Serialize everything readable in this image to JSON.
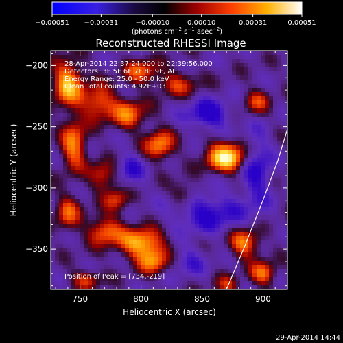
{
  "chart_data": {
    "type": "heatmap",
    "title": "Reconstructed RHESSI Image",
    "xlabel": "Heliocentric X (arcsec)",
    "ylabel": "Heliocentric Y (arcsec)",
    "xlim": [
      726,
      920
    ],
    "ylim": [
      -383,
      -188
    ],
    "x_ticks": [
      750,
      800,
      850,
      900
    ],
    "x_tick_labels": [
      "750",
      "800",
      "850",
      "900"
    ],
    "y_ticks": [
      -200,
      -250,
      -300,
      -350
    ],
    "y_tick_labels": [
      "−200",
      "−250",
      "−300",
      "−350"
    ],
    "colorbar": {
      "range": [
        -0.00051,
        0.00051
      ],
      "ticks": [
        -0.00051,
        -0.00031,
        -0.0001,
        0.0001,
        0.00031,
        0.00051
      ],
      "tick_labels": [
        "−0.00051",
        "−0.00031",
        "−0.00010",
        "0.00010",
        "0.00031",
        "0.00051"
      ],
      "unit_label": "(photons cm",
      "unit_exp1": "−2",
      "unit_mid": " s",
      "unit_exp2": "−1",
      "unit_mid2": " asec",
      "unit_exp3": "−2",
      "unit_end": ")",
      "colormap": [
        "#0000ff",
        "#5a1fd0",
        "#000000",
        "#c00000",
        "#ff5a00",
        "#ffd200",
        "#ffffff"
      ]
    },
    "annotations": [
      "28-Apr-2014 22:37:24.000 to 22:39:56.000",
      "Detectors: 3F 5F 6F 7F 8F 9F, AI",
      "Energy Range: 25.0 - 50.0 keV",
      "Clean    Total counts: 4.92E+03"
    ],
    "peak_label": "Position of Peak = [734,-219]",
    "peak": [
      734,
      -219
    ],
    "limb_curve": [
      [
        870,
        -383
      ],
      [
        884,
        -350
      ],
      [
        900,
        -310
      ],
      [
        912,
        -278
      ],
      [
        920,
        -252
      ]
    ],
    "grid": false
  },
  "footer": {
    "timestamp": "29-Apr-2014 14:44"
  }
}
